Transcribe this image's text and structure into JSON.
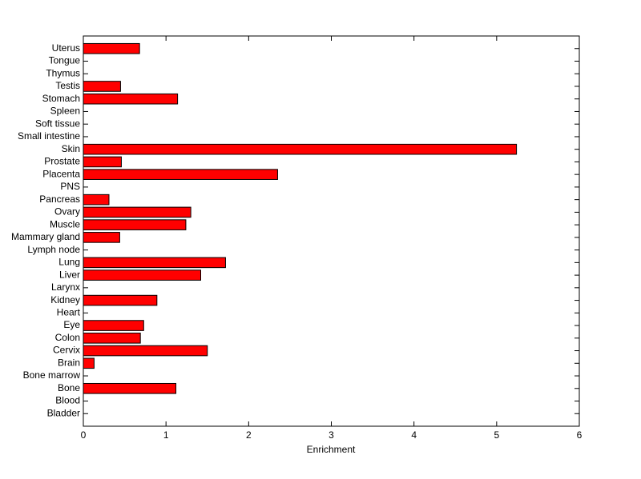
{
  "chart_data": {
    "type": "barh",
    "xlabel": "Enrichment",
    "categories": [
      "Uterus",
      "Tongue",
      "Thymus",
      "Testis",
      "Stomach",
      "Spleen",
      "Soft tissue",
      "Small intestine",
      "Skin",
      "Prostate",
      "Placenta",
      "PNS",
      "Pancreas",
      "Ovary",
      "Muscle",
      "Mammary gland",
      "Lymph node",
      "Lung",
      "Liver",
      "Larynx",
      "Kidney",
      "Heart",
      "Eye",
      "Colon",
      "Cervix",
      "Brain",
      "Bone marrow",
      "Bone",
      "Blood",
      "Bladder"
    ],
    "values": [
      0.68,
      0,
      0,
      0.45,
      1.14,
      0,
      0,
      0,
      5.24,
      0.46,
      2.35,
      0,
      0.31,
      1.3,
      1.24,
      0.44,
      0,
      1.72,
      1.42,
      0,
      0.89,
      0,
      0.73,
      0.69,
      1.5,
      0.13,
      0,
      1.12,
      0,
      0
    ],
    "color": "#ff0000",
    "xlim": [
      0,
      6
    ],
    "xticks": [
      0,
      1,
      2,
      3,
      4,
      5,
      6
    ]
  }
}
